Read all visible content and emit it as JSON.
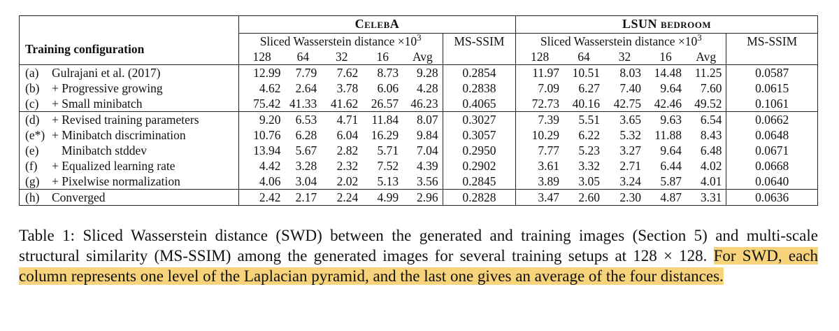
{
  "table": {
    "header": {
      "config_label": "Training configuration",
      "celeba": "CelebA",
      "lsun": "LSUN bedroom",
      "swd_label_celeba": "Sliced Wasserstein distance ×10",
      "swd_label_lsun": "Sliced Wasserstein distance ×10",
      "swd_exp": "3",
      "msssim": "MS-SSIM",
      "cols": [
        "128",
        "64",
        "32",
        "16",
        "Avg"
      ]
    },
    "rows": [
      {
        "letter": "(a)",
        "name": "Gulrajani et al. (2017)",
        "indent": false,
        "celeba": [
          "12.99",
          "7.79",
          "7.62",
          "8.73",
          "9.28"
        ],
        "celeba_ms": "0.2854",
        "lsun": [
          "11.97",
          "10.51",
          "8.03",
          "14.48",
          "11.25"
        ],
        "lsun_ms": "0.0587",
        "bold": [
          "lsun_ms"
        ]
      },
      {
        "letter": "(b)",
        "name": "+ Progressive growing",
        "indent": false,
        "celeba": [
          "4.62",
          "2.64",
          "3.78",
          "6.06",
          "4.28"
        ],
        "celeba_ms": "0.2838",
        "lsun": [
          "7.09",
          "6.27",
          "7.40",
          "9.64",
          "7.60"
        ],
        "lsun_ms": "0.0615",
        "bold": [
          "celeba.1",
          "celeba_ms"
        ]
      },
      {
        "letter": "(c)",
        "name": "+ Small minibatch",
        "indent": false,
        "celeba": [
          "75.42",
          "41.33",
          "41.62",
          "26.57",
          "46.23"
        ],
        "celeba_ms": "0.4065",
        "lsun": [
          "72.73",
          "40.16",
          "42.75",
          "42.46",
          "49.52"
        ],
        "lsun_ms": "0.1061",
        "bold": []
      },
      {
        "letter": "(d)",
        "name": "+ Revised training parameters",
        "indent": false,
        "celeba": [
          "9.20",
          "6.53",
          "4.71",
          "11.84",
          "8.07"
        ],
        "celeba_ms": "0.3027",
        "lsun": [
          "7.39",
          "5.51",
          "3.65",
          "9.63",
          "6.54"
        ],
        "lsun_ms": "0.0662",
        "bold": []
      },
      {
        "letter": "(e*)",
        "name": "+ Minibatch discrimination",
        "indent": false,
        "celeba": [
          "10.76",
          "6.28",
          "6.04",
          "16.29",
          "9.84"
        ],
        "celeba_ms": "0.3057",
        "lsun": [
          "10.29",
          "6.22",
          "5.32",
          "11.88",
          "8.43"
        ],
        "lsun_ms": "0.0648",
        "bold": []
      },
      {
        "letter": "(e)",
        "name": "Minibatch stddev",
        "indent": true,
        "celeba": [
          "13.94",
          "5.67",
          "2.82",
          "5.71",
          "7.04"
        ],
        "celeba_ms": "0.2950",
        "lsun": [
          "7.77",
          "5.23",
          "3.27",
          "9.64",
          "6.48"
        ],
        "lsun_ms": "0.0671",
        "bold": []
      },
      {
        "letter": "(f)",
        "name": "+ Equalized learning rate",
        "indent": false,
        "celeba": [
          "4.42",
          "3.28",
          "2.32",
          "7.52",
          "4.39"
        ],
        "celeba_ms": "0.2902",
        "lsun": [
          "3.61",
          "3.32",
          "2.71",
          "6.44",
          "4.02"
        ],
        "lsun_ms": "0.0668",
        "bold": [
          "lsun.0",
          "lsun.2"
        ]
      },
      {
        "letter": "(g)",
        "name": "+ Pixelwise normalization",
        "indent": false,
        "celeba": [
          "4.06",
          "3.04",
          "2.02",
          "5.13",
          "3.56"
        ],
        "celeba_ms": "0.2845",
        "lsun": [
          "3.89",
          "3.05",
          "3.24",
          "5.87",
          "4.01"
        ],
        "lsun_ms": "0.0640",
        "bold": [
          "celeba.0",
          "celeba.2",
          "celeba.3",
          "celeba.4",
          "lsun.1",
          "lsun.3",
          "lsun.4"
        ]
      },
      {
        "letter": "(h)",
        "name": "Converged",
        "indent": false,
        "celeba": [
          "2.42",
          "2.17",
          "2.24",
          "4.99",
          "2.96"
        ],
        "celeba_ms": "0.2828",
        "lsun": [
          "3.47",
          "2.60",
          "2.30",
          "4.87",
          "3.31"
        ],
        "lsun_ms": "0.0636",
        "bold": []
      }
    ]
  },
  "caption": {
    "part1": "Table 1: Sliced Wasserstein distance (SWD) between the generated and training images (Section 5) and multi-scale structural similarity (MS-SSIM) among the generated images for several training setups at 128 × 128.",
    "highlighted": "For SWD, each column represents one level of the Laplacian pyramid, and the last one gives an average of the four distances."
  }
}
